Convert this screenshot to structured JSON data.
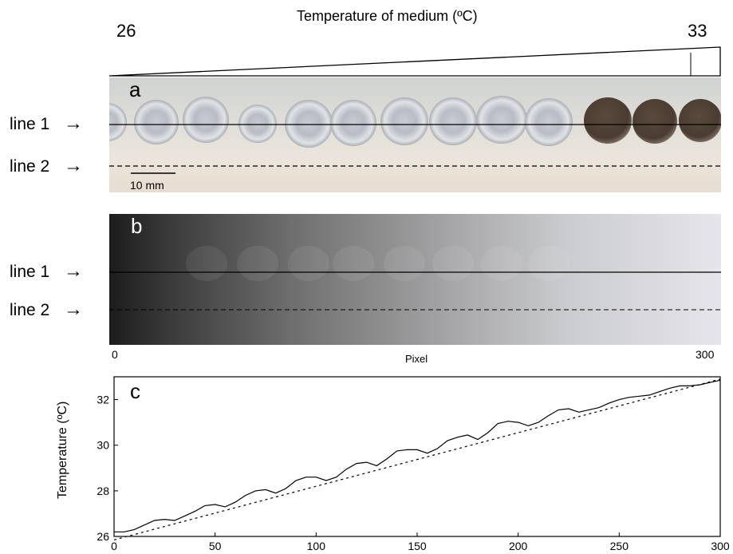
{
  "header": {
    "title": "Temperature of medium (ºC)",
    "temp_min": "26",
    "temp_max": "33"
  },
  "panel_a": {
    "letter": "a",
    "line1_label": "line 1",
    "line2_label": "line 2",
    "scale_label": "10 mm",
    "arrow": "→"
  },
  "panel_b": {
    "letter": "b",
    "line1_label": "line 1",
    "line2_label": "line 2",
    "xlabel": "Pixel",
    "x_start": "0",
    "x_end": "300"
  },
  "chart_data": {
    "type": "line",
    "letter": "c",
    "xlabel": "",
    "ylabel": "Temperature (ºC)",
    "xlim": [
      0,
      300
    ],
    "ylim": [
      26,
      33
    ],
    "xticks": [
      0,
      50,
      100,
      150,
      200,
      250,
      300
    ],
    "yticks": [
      26,
      28,
      30,
      32
    ],
    "series": [
      {
        "style": "solid",
        "x": [
          0,
          5,
          10,
          15,
          20,
          25,
          30,
          35,
          40,
          45,
          50,
          55,
          60,
          65,
          70,
          75,
          80,
          85,
          90,
          95,
          100,
          105,
          110,
          115,
          120,
          125,
          130,
          135,
          140,
          145,
          150,
          155,
          160,
          165,
          170,
          175,
          180,
          185,
          190,
          195,
          200,
          205,
          210,
          215,
          220,
          225,
          230,
          235,
          240,
          245,
          250,
          255,
          260,
          265,
          270,
          275,
          280,
          285,
          290,
          295,
          300
        ],
        "y": [
          26.2,
          26.2,
          26.3,
          26.5,
          26.7,
          26.75,
          26.7,
          26.9,
          27.1,
          27.35,
          27.4,
          27.3,
          27.5,
          27.8,
          28.0,
          28.05,
          27.9,
          28.1,
          28.45,
          28.6,
          28.6,
          28.45,
          28.6,
          28.95,
          29.2,
          29.25,
          29.1,
          29.4,
          29.75,
          29.8,
          29.8,
          29.65,
          29.85,
          30.2,
          30.35,
          30.45,
          30.25,
          30.55,
          30.95,
          31.05,
          31.0,
          30.85,
          31.0,
          31.3,
          31.55,
          31.6,
          31.45,
          31.55,
          31.65,
          31.85,
          32.0,
          32.1,
          32.15,
          32.2,
          32.35,
          32.5,
          32.6,
          32.6,
          32.65,
          32.75,
          32.85
        ]
      },
      {
        "style": "dashed",
        "x": [
          0,
          300
        ],
        "y": [
          25.85,
          32.9
        ]
      }
    ]
  }
}
